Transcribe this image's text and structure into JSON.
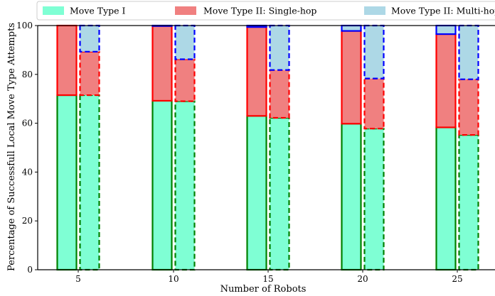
{
  "chart_data": {
    "type": "bar",
    "stacked": true,
    "title": "",
    "xlabel": "Number of Robots",
    "ylabel": "Percentage of Successfull Local Move Type Attempts",
    "ylim": [
      0,
      100
    ],
    "yticks": [
      0,
      20,
      40,
      60,
      80,
      100
    ],
    "categories": [
      "5",
      "10",
      "15",
      "20",
      "25"
    ],
    "grid": false,
    "legend_position": "top",
    "legend": [
      {
        "label": "Move Type I",
        "color": "#7fffd4"
      },
      {
        "label": "Move Type II: Single-hop",
        "color": "#f08080"
      },
      {
        "label": "Move Type II: Multi-hop",
        "color": "#add8e6"
      }
    ],
    "groups": [
      {
        "name": "solid",
        "edge_style": "solid",
        "stacks": [
          {
            "series": "Move Type I",
            "fill": "#7fffd4",
            "edge": "#008000",
            "values": [
              71.5,
              69.2,
              63.0,
              59.8,
              58.3
            ]
          },
          {
            "series": "Move Type II: Single-hop",
            "fill": "#f08080",
            "edge": "#ff0000",
            "values": [
              28.5,
              30.6,
              36.4,
              38.0,
              38.2
            ]
          },
          {
            "series": "Move Type II: Multi-hop",
            "fill": "#add8e6",
            "edge": "#0000ff",
            "values": [
              0.0,
              0.2,
              0.6,
              2.2,
              3.5
            ]
          }
        ]
      },
      {
        "name": "dashed",
        "edge_style": "dashed",
        "stacks": [
          {
            "series": "Move Type I",
            "fill": "#7fffd4",
            "edge": "#008000",
            "values": [
              71.5,
              69.0,
              62.2,
              57.8,
              55.2
            ]
          },
          {
            "series": "Move Type II: Single-hop",
            "fill": "#f08080",
            "edge": "#ff0000",
            "values": [
              17.8,
              17.2,
              19.6,
              20.5,
              22.8
            ]
          },
          {
            "series": "Move Type II: Multi-hop",
            "fill": "#add8e6",
            "edge": "#0000ff",
            "values": [
              10.7,
              13.8,
              18.2,
              21.7,
              22.0
            ]
          }
        ]
      }
    ]
  }
}
